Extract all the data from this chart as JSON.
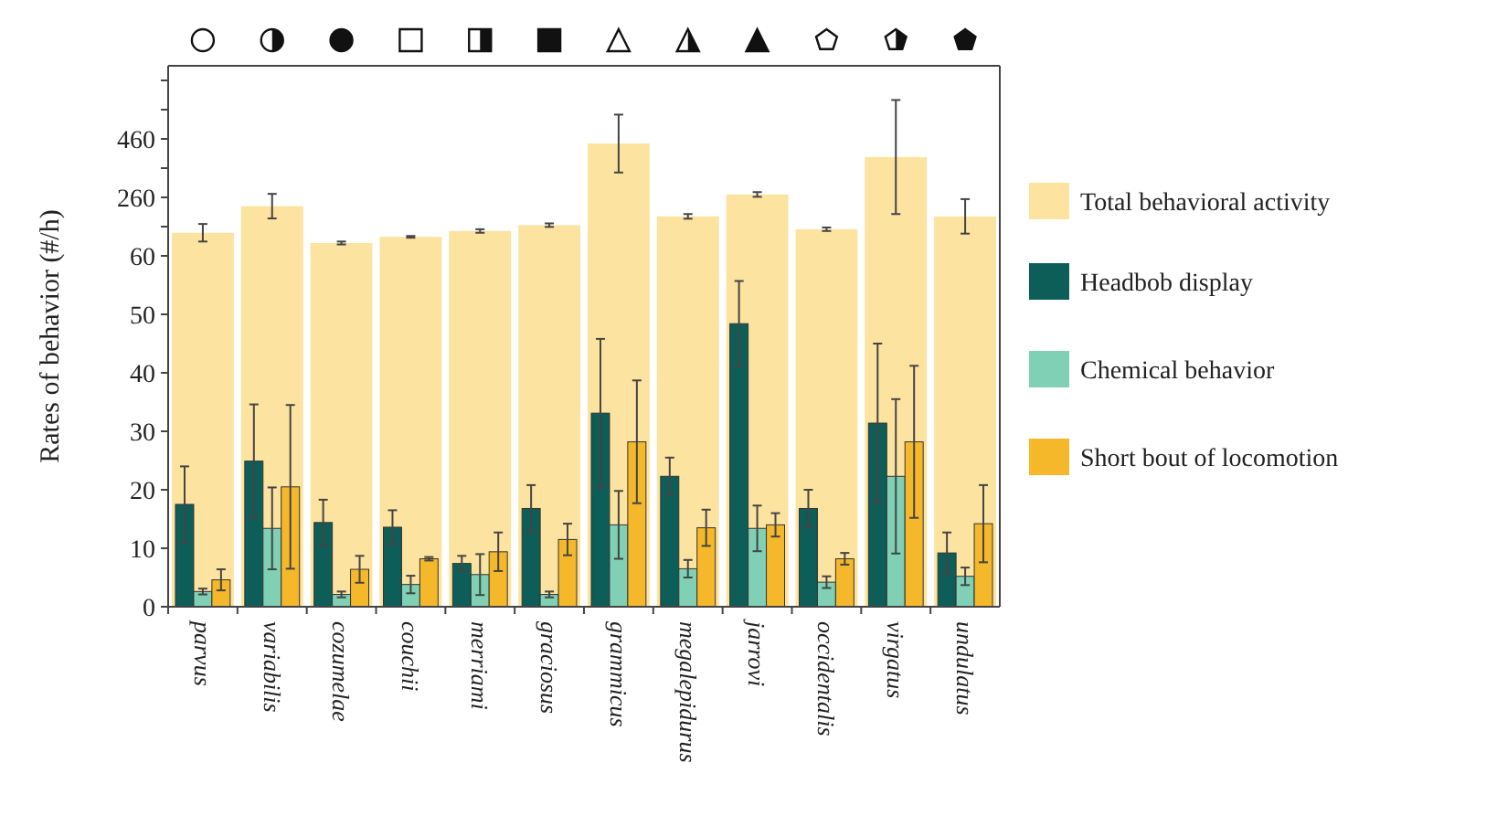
{
  "chart_data": [
    {
      "type": "bar",
      "series": [
        {
          "name": "Total behavioral activity",
          "color": "#fde3a0",
          "values": [
            139,
            230,
            104,
            125,
            145,
            165,
            444,
            195,
            270,
            151,
            398,
            195
          ],
          "errors": [
            30,
            42,
            5,
            3,
            6,
            6,
            99,
            8,
            8,
            6,
            195,
            59
          ]
        }
      ],
      "ylim": [
        60,
        710
      ],
      "yticks": [
        {
          "value": 160,
          "label": null
        },
        260,
        {
          "value": 360,
          "label": null
        },
        460,
        {
          "value": 560,
          "label": null
        },
        {
          "value": 660,
          "label": null
        }
      ],
      "tick_labels": "y",
      "grid": false,
      "legend": "right"
    },
    {
      "type": "bar",
      "ylabel": "Rates of behavior (#/h)",
      "categories": [
        "parvus",
        "variabilis",
        "cozumelae",
        "couchii",
        "merriami",
        "graciosus",
        "grammicus",
        "megalepidurus",
        "jarrovi",
        "occidentalis",
        "virgatus",
        "undulatus"
      ],
      "series": [
        {
          "name": "Headbob display",
          "color": "#0d5e58",
          "values": [
            17.5,
            24.9,
            14.4,
            13.6,
            7.4,
            16.8,
            33.1,
            22.3,
            48.4,
            16.8,
            31.4,
            9.2
          ],
          "errors": [
            6.5,
            9.7,
            3.9,
            2.9,
            1.3,
            4,
            12.7,
            3.2,
            7.3,
            3.2,
            13.6,
            3.5
          ]
        },
        {
          "name": "Chemical behavior",
          "color": "#7fd0b4",
          "values": [
            2.6,
            13.4,
            2.1,
            3.8,
            5.5,
            2.1,
            14,
            6.5,
            13.4,
            4.2,
            22.3,
            5.2
          ],
          "errors": [
            0.5,
            7,
            0.5,
            1.5,
            3.5,
            0.5,
            5.8,
            1.5,
            3.9,
            1,
            13.2,
            1.5
          ]
        },
        {
          "name": "Short bout of locomotion",
          "color": "#f5b82a",
          "values": [
            4.6,
            20.5,
            6.4,
            8.2,
            9.4,
            11.5,
            28.2,
            13.5,
            14,
            8.2,
            28.2,
            14.2
          ],
          "errors": [
            1.8,
            14,
            2.3,
            0.3,
            3.3,
            2.7,
            10.5,
            3.1,
            2,
            1,
            13,
            6.6
          ]
        }
      ],
      "ylim": [
        0,
        60
      ],
      "yticks": [
        0,
        10,
        20,
        30,
        40,
        50,
        60
      ],
      "grid": false,
      "legend": "right"
    }
  ]
}
